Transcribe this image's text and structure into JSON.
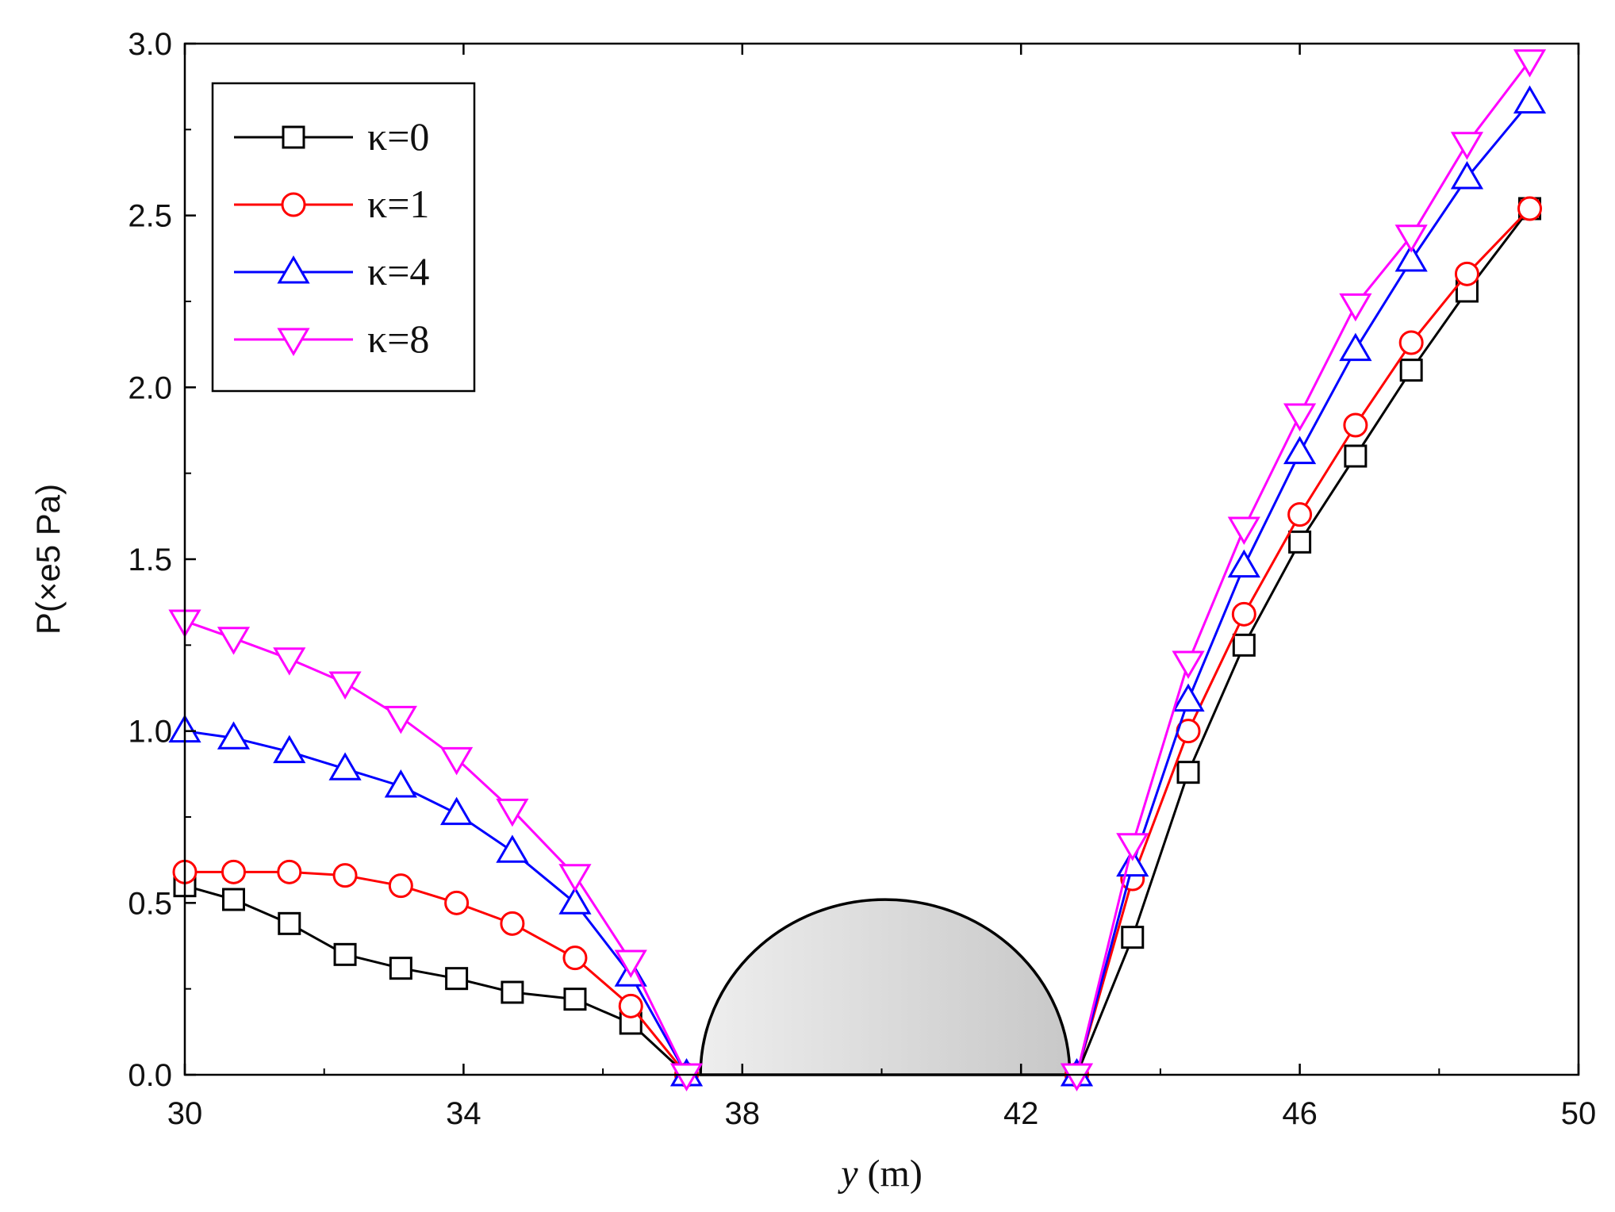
{
  "chart_data": {
    "type": "line",
    "title": "",
    "xlabel": {
      "var": "y",
      "unit": " (m)"
    },
    "ylabel": "P(×e5 Pa)",
    "xlim": [
      30,
      50
    ],
    "ylim": [
      0,
      3
    ],
    "xticks": [
      30,
      34,
      38,
      42,
      46,
      50
    ],
    "xtick_labels": [
      "30",
      "34",
      "38",
      "42",
      "46",
      "50"
    ],
    "yticks": [
      0,
      0.5,
      1,
      1.5,
      2,
      2.5,
      3
    ],
    "ytick_labels": [
      "0.0",
      "0.5",
      "1.0",
      "1.5",
      "2.0",
      "2.5",
      "3.0"
    ],
    "legend_position": "top-left",
    "obstacle": {
      "shape": "semicircle",
      "x_from": 37.4,
      "x_to": 42.7,
      "height": 0.51,
      "fill": "#d9d9d9",
      "stroke": "#000000"
    },
    "series": [
      {
        "name": "κ=0",
        "color": "#000000",
        "marker": "square",
        "left": {
          "x": [
            30.0,
            30.7,
            31.5,
            32.3,
            33.1,
            33.9,
            34.7,
            35.6,
            36.4,
            37.2
          ],
          "y": [
            0.55,
            0.51,
            0.44,
            0.35,
            0.31,
            0.28,
            0.24,
            0.22,
            0.15,
            0.0
          ]
        },
        "right": {
          "x": [
            42.8,
            43.6,
            44.4,
            45.2,
            46.0,
            46.8,
            47.6,
            48.4,
            49.3
          ],
          "y": [
            0.0,
            0.4,
            0.88,
            1.25,
            1.55,
            1.8,
            2.05,
            2.28,
            2.52
          ]
        }
      },
      {
        "name": "κ=1",
        "color": "#ff0000",
        "marker": "circle",
        "left": {
          "x": [
            30.0,
            30.7,
            31.5,
            32.3,
            33.1,
            33.9,
            34.7,
            35.6,
            36.4,
            37.2
          ],
          "y": [
            0.59,
            0.59,
            0.59,
            0.58,
            0.55,
            0.5,
            0.44,
            0.34,
            0.2,
            0.0
          ]
        },
        "right": {
          "x": [
            42.8,
            43.6,
            44.4,
            45.2,
            46.0,
            46.8,
            47.6,
            48.4,
            49.3
          ],
          "y": [
            0.0,
            0.57,
            1.0,
            1.34,
            1.63,
            1.89,
            2.13,
            2.33,
            2.52
          ]
        }
      },
      {
        "name": "κ=4",
        "color": "#0000ff",
        "marker": "triangle-up",
        "left": {
          "x": [
            30.0,
            30.7,
            31.5,
            32.3,
            33.1,
            33.9,
            34.7,
            35.6,
            36.4,
            37.2
          ],
          "y": [
            1.0,
            0.98,
            0.94,
            0.89,
            0.84,
            0.76,
            0.65,
            0.5,
            0.29,
            0.0
          ]
        },
        "right": {
          "x": [
            42.8,
            43.6,
            44.4,
            45.2,
            46.0,
            46.8,
            47.6,
            48.4,
            49.3
          ],
          "y": [
            0.0,
            0.61,
            1.09,
            1.48,
            1.81,
            2.11,
            2.37,
            2.61,
            2.83
          ]
        }
      },
      {
        "name": "κ=8",
        "color": "#ff00ff",
        "marker": "triangle-down",
        "left": {
          "x": [
            30.0,
            30.7,
            31.5,
            32.3,
            33.1,
            33.9,
            34.7,
            35.6,
            36.4,
            37.2
          ],
          "y": [
            1.32,
            1.27,
            1.21,
            1.14,
            1.04,
            0.92,
            0.77,
            0.58,
            0.33,
            0.0
          ]
        },
        "right": {
          "x": [
            42.8,
            43.6,
            44.4,
            45.2,
            46.0,
            46.8,
            47.6,
            48.4,
            49.3
          ],
          "y": [
            0.0,
            0.67,
            1.2,
            1.59,
            1.92,
            2.24,
            2.44,
            2.71,
            2.95
          ]
        }
      }
    ]
  }
}
